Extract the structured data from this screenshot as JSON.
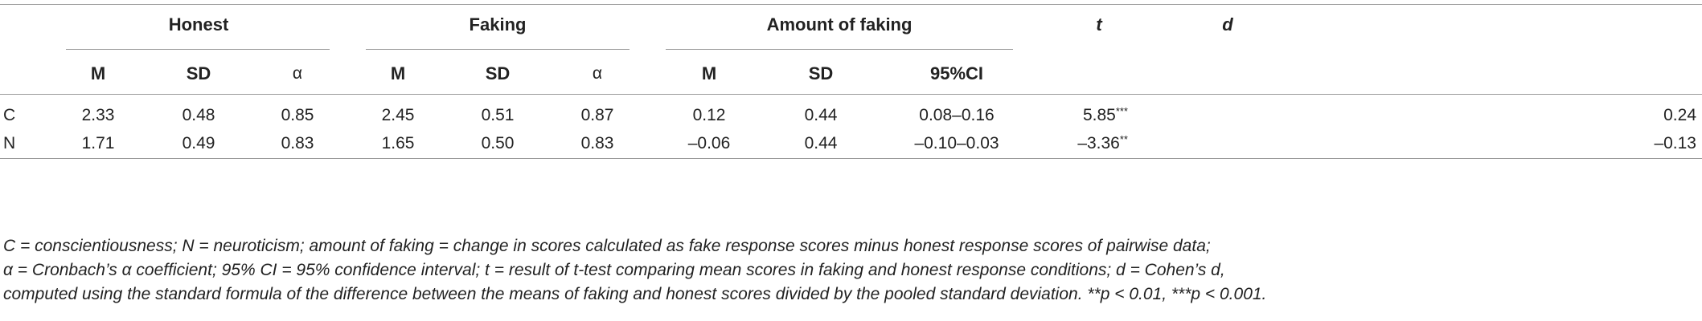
{
  "table": {
    "group_headers": {
      "honest": "Honest",
      "faking": "Faking",
      "amount": "Amount of faking",
      "t": "t",
      "d": "d"
    },
    "sub_headers": {
      "honest_m": "M",
      "honest_sd": "SD",
      "honest_alpha": "α",
      "faking_m": "M",
      "faking_sd": "SD",
      "faking_alpha": "α",
      "amount_m": "M",
      "amount_sd": "SD",
      "amount_ci": "95%CI"
    },
    "rows": [
      {
        "label": "C",
        "honest_m": "2.33",
        "honest_sd": "0.48",
        "honest_alpha": "0.85",
        "faking_m": "2.45",
        "faking_sd": "0.51",
        "faking_alpha": "0.87",
        "amount_m": "0.12",
        "amount_sd": "0.44",
        "amount_ci": "0.08–0.16",
        "t": "5.85",
        "t_sig": "***",
        "d": "0.24"
      },
      {
        "label": "N",
        "honest_m": "1.71",
        "honest_sd": "0.49",
        "honest_alpha": "0.83",
        "faking_m": "1.65",
        "faking_sd": "0.50",
        "faking_alpha": "0.83",
        "amount_m": "–0.06",
        "amount_sd": "0.44",
        "amount_ci": "–0.10–0.03",
        "t": "–3.36",
        "t_sig": "**",
        "d": "–0.13"
      }
    ]
  },
  "footnote": {
    "line1": "C = conscientiousness; N = neuroticism; amount of faking = change in scores calculated as fake response scores minus honest response scores of pairwise data;",
    "line2": "α = Cronbach’s α coefficient; 95% CI = 95% confidence interval; t = result of t-test comparing mean scores in faking and honest response conditions; d = Cohen’s d,",
    "line3": "computed using the standard formula of the difference between the means of faking and honest scores divided by the pooled standard deviation. **p < 0.01, ***p < 0.001."
  }
}
